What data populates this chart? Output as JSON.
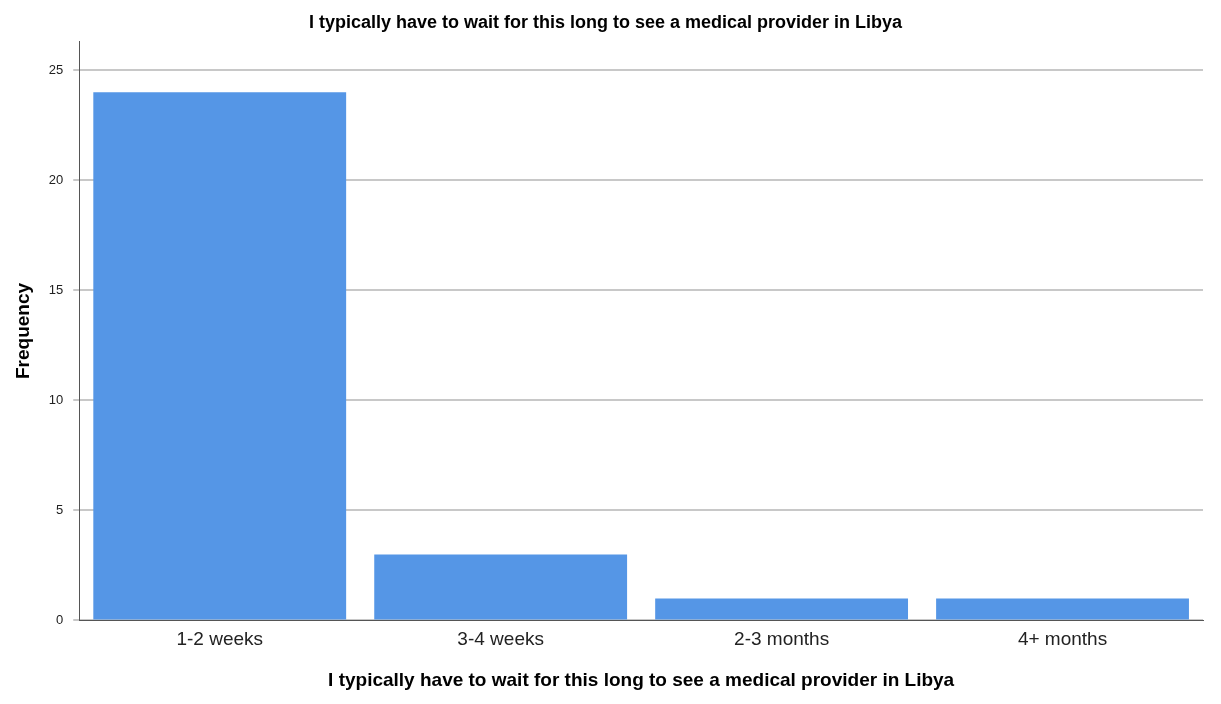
{
  "chart_data": {
    "type": "bar",
    "title": "I typically have to wait for this long to see a medical provider in Libya",
    "xlabel": "I typically have to wait for this long to see a medical provider in Libya",
    "ylabel": "Frequency",
    "categories": [
      "1-2 weeks",
      "3-4 weeks",
      "2-3 months",
      "4+ months"
    ],
    "values": [
      24,
      3,
      1,
      1
    ],
    "color": "#5596e6",
    "ylim": [
      0,
      26.3
    ],
    "yticks": [
      0,
      5,
      10,
      15,
      20,
      25
    ],
    "grid": "y",
    "legend": false
  }
}
